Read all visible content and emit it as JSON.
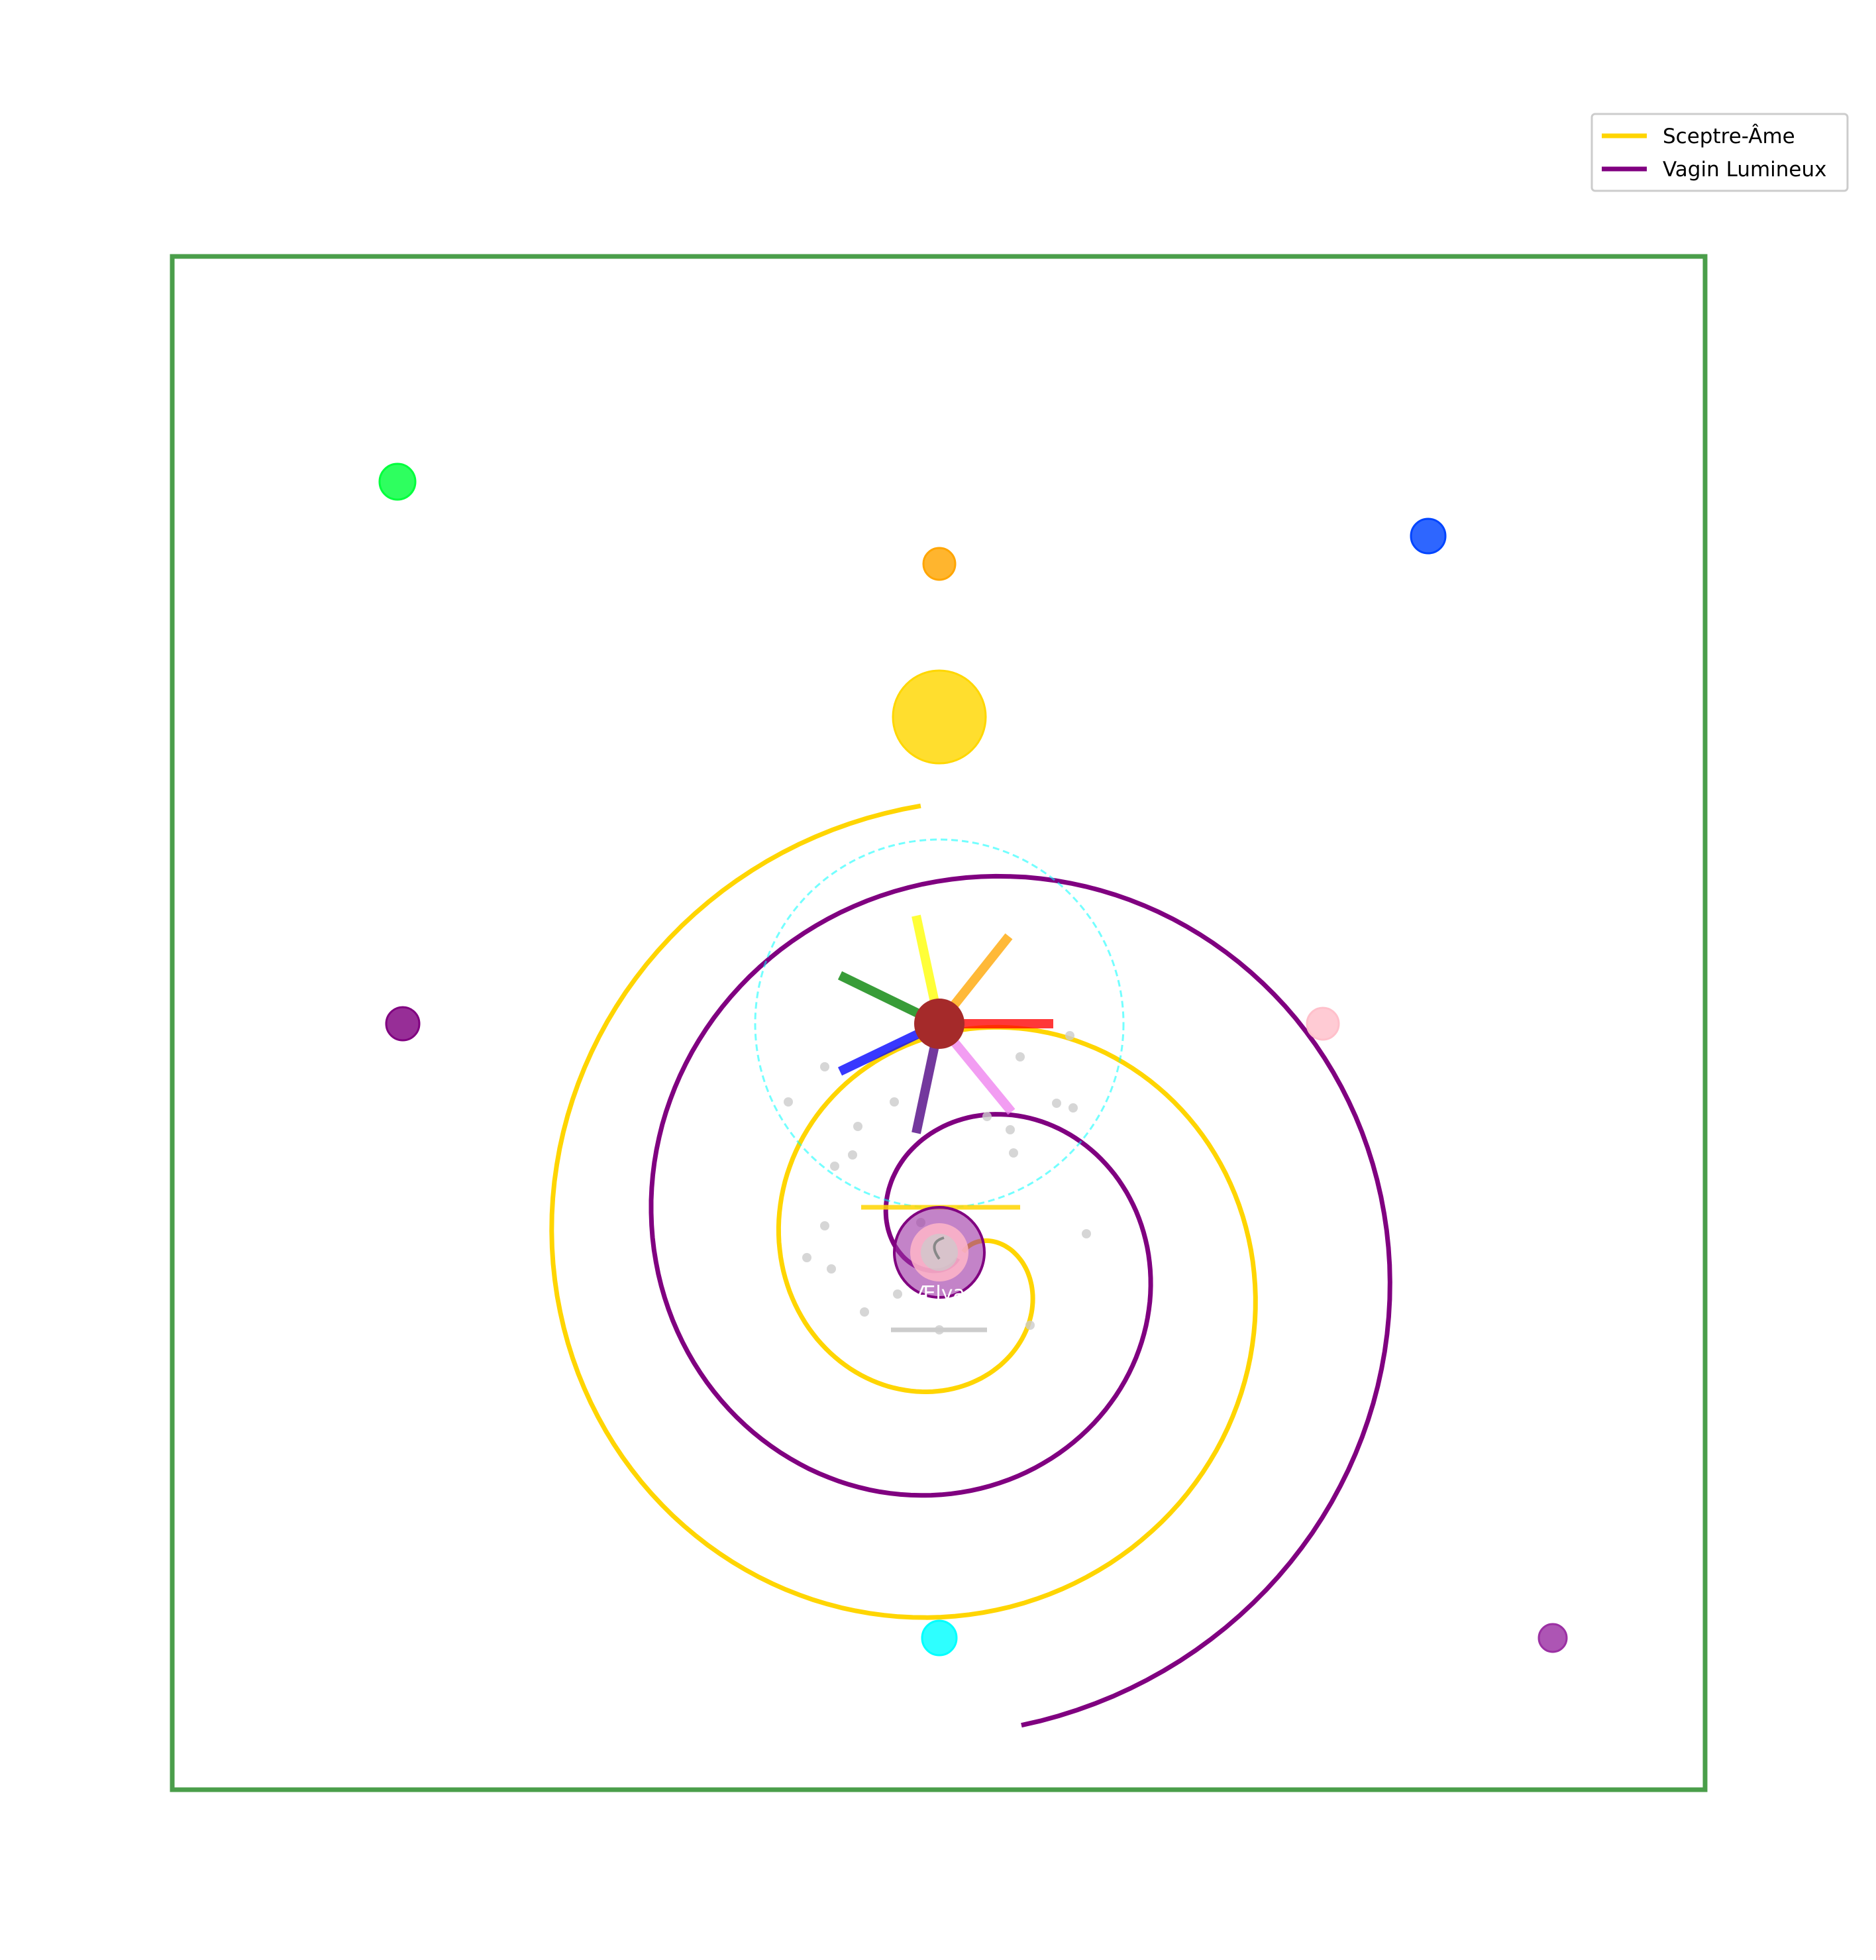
{
  "frame": {
    "color": "#4a9e4a"
  },
  "legend": {
    "items": [
      {
        "label": "Sceptre-Âme",
        "color": "#ffd500"
      },
      {
        "label": "Vagin Lumineux",
        "color": "#800080"
      }
    ]
  },
  "orbs": [
    {
      "name": "green-orb",
      "color": "#00ff3c"
    },
    {
      "name": "orange-orb",
      "color": "#ffa500"
    },
    {
      "name": "blue-orb",
      "color": "#0044ff"
    },
    {
      "name": "sun-orb",
      "color": "#ffd700"
    },
    {
      "name": "purple-orb",
      "color": "#800080"
    },
    {
      "name": "pink-orb",
      "color": "#ffc0cb"
    },
    {
      "name": "cyan-orb",
      "color": "#00ffff"
    },
    {
      "name": "violet-orb",
      "color": "#9b30a3"
    }
  ],
  "core": {
    "node_color": "#a52a2a",
    "aura_color": "#00ffff",
    "rays": [
      {
        "name": "yellow-ray",
        "color": "#ffff00"
      },
      {
        "name": "orange-ray",
        "color": "#ffa500"
      },
      {
        "name": "red-ray",
        "color": "#ff0000"
      },
      {
        "name": "pink-ray",
        "color": "#ee82ee"
      },
      {
        "name": "indigo-ray",
        "color": "#4b0082"
      },
      {
        "name": "blue-ray",
        "color": "#0000ff"
      },
      {
        "name": "green-ray",
        "color": "#008000"
      }
    ]
  },
  "figure": {
    "label": "Ælya"
  }
}
